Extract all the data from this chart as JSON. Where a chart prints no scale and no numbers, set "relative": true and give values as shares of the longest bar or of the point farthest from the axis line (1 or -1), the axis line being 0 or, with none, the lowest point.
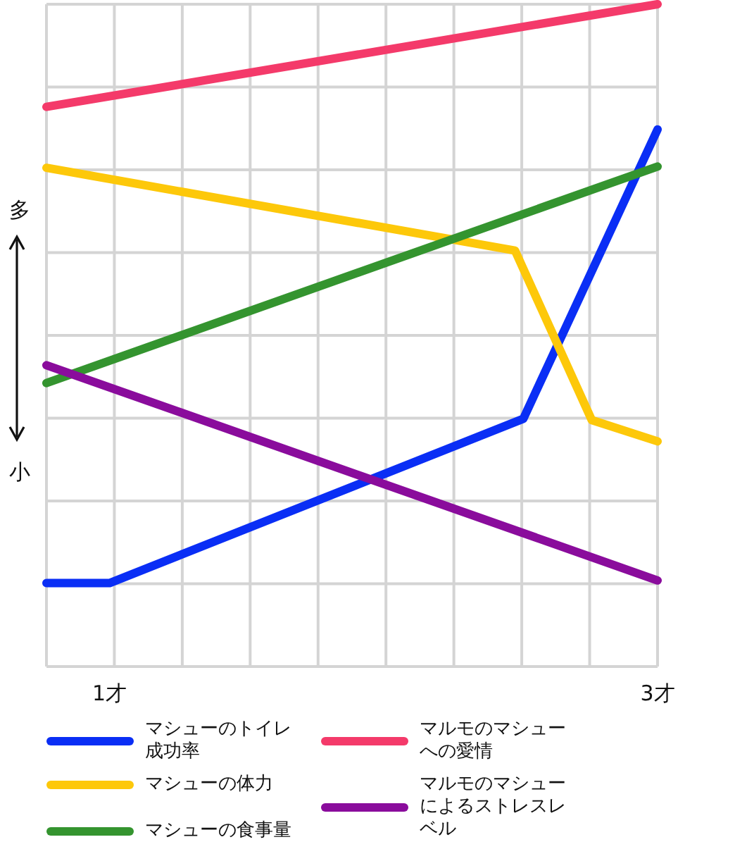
{
  "chart_data": {
    "type": "line",
    "relative": true,
    "grid": true,
    "legend": "bottom",
    "marker": "none",
    "line_style": "solid",
    "xlim": [
      0.77,
      3
    ],
    "xticks": [
      {
        "value": 1,
        "label": "1才"
      },
      {
        "value": 3,
        "label": "3才"
      }
    ],
    "annotations": [
      "多",
      "小"
    ],
    "series": [
      {
        "name": "マシューのトイレ成功率",
        "color": "#0a2ef5",
        "x": [
          0.77,
          1,
          2.51,
          3
        ],
        "values": [
          0.126,
          0.126,
          0.374,
          0.811
        ]
      },
      {
        "name": "マシューの体力",
        "color": "#fdc80a",
        "x": [
          0.77,
          2.48,
          2.76,
          3
        ],
        "values": [
          0.753,
          0.628,
          0.372,
          0.34
        ]
      },
      {
        "name": "マシューの食事量",
        "color": "#34942f",
        "x": [
          0.77,
          3
        ],
        "values": [
          0.428,
          0.755
        ]
      },
      {
        "name": "マルモのマシューへの愛情",
        "color": "#f43a6a",
        "x": [
          0.77,
          3
        ],
        "values": [
          0.845,
          1
        ]
      },
      {
        "name": "マルモのマシューによるストレスレベル",
        "color": "#8a0c9c",
        "x": [
          0.77,
          3
        ],
        "values": [
          0.455,
          0.13
        ]
      }
    ]
  }
}
